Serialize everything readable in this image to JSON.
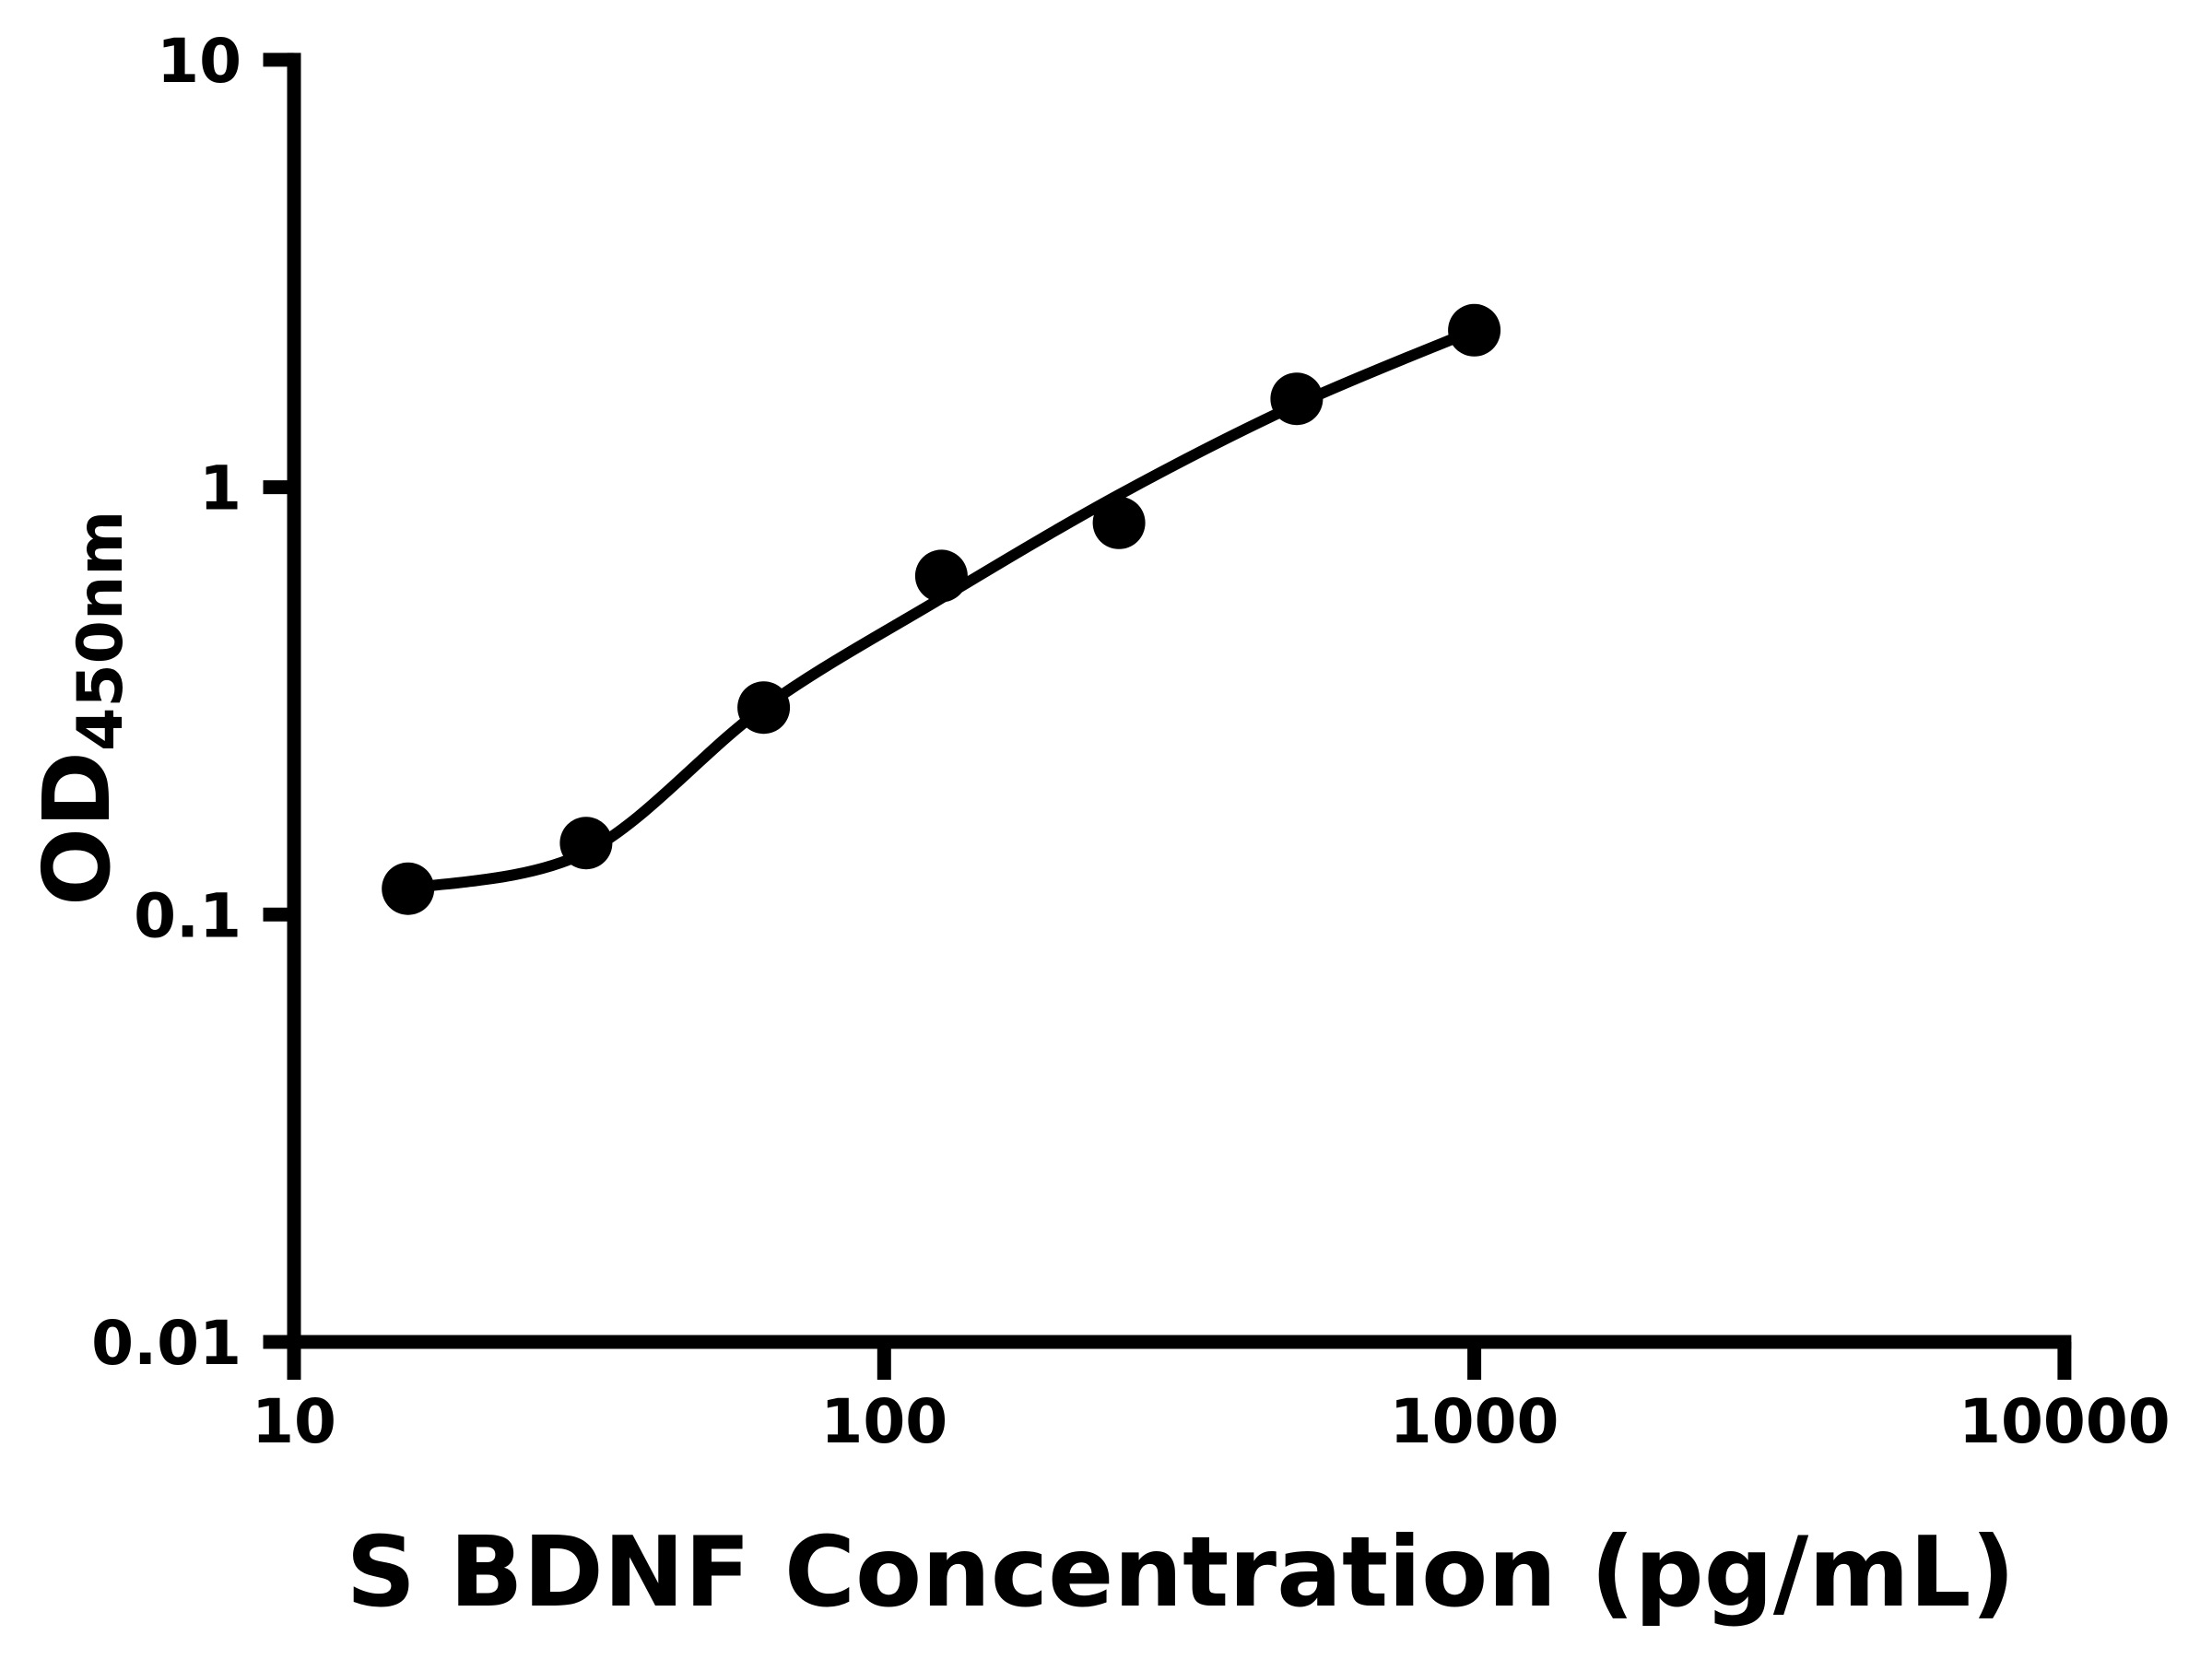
{
  "figure": {
    "background_color": "#ffffff",
    "foreground_color": "#000000"
  },
  "chart_data": {
    "type": "scatter",
    "subtype": "standard-curve-with-fit-line",
    "title": "",
    "xlabel": "S BDNF Concentration (pg/mL)",
    "ylabel": "OD450nm",
    "ylabel_main": "OD",
    "ylabel_sub": "450nm",
    "x_scale": "log",
    "y_scale": "log",
    "xlim": [
      10,
      10000
    ],
    "ylim": [
      0.01,
      10
    ],
    "grid": "off",
    "legend": "none",
    "x_ticks": [
      {
        "value": 10,
        "label": "10"
      },
      {
        "value": 100,
        "label": "100"
      },
      {
        "value": 1000,
        "label": "1000"
      },
      {
        "value": 10000,
        "label": "10000"
      }
    ],
    "y_ticks": [
      {
        "value": 10,
        "label": "10"
      },
      {
        "value": 1,
        "label": "1"
      },
      {
        "value": 0.1,
        "label": "0.1"
      },
      {
        "value": 0.01,
        "label": "0.01"
      }
    ],
    "series": [
      {
        "name": "standards",
        "marker": "filled-circle",
        "color": "#000000",
        "points": [
          {
            "x": 15.6,
            "y": 0.115
          },
          {
            "x": 31.25,
            "y": 0.147
          },
          {
            "x": 62.5,
            "y": 0.305
          },
          {
            "x": 125,
            "y": 0.62
          },
          {
            "x": 250,
            "y": 0.825
          },
          {
            "x": 500,
            "y": 1.61
          },
          {
            "x": 1000,
            "y": 2.33
          }
        ]
      }
    ],
    "fit_curve": {
      "name": "fitted-standard-curve",
      "color": "#000000",
      "points": [
        {
          "x": 15.6,
          "y": 0.115
        },
        {
          "x": 31.25,
          "y": 0.14
        },
        {
          "x": 62.5,
          "y": 0.305
        },
        {
          "x": 125,
          "y": 0.55
        },
        {
          "x": 250,
          "y": 0.96
        },
        {
          "x": 500,
          "y": 1.56
        },
        {
          "x": 1000,
          "y": 2.33
        }
      ]
    }
  }
}
